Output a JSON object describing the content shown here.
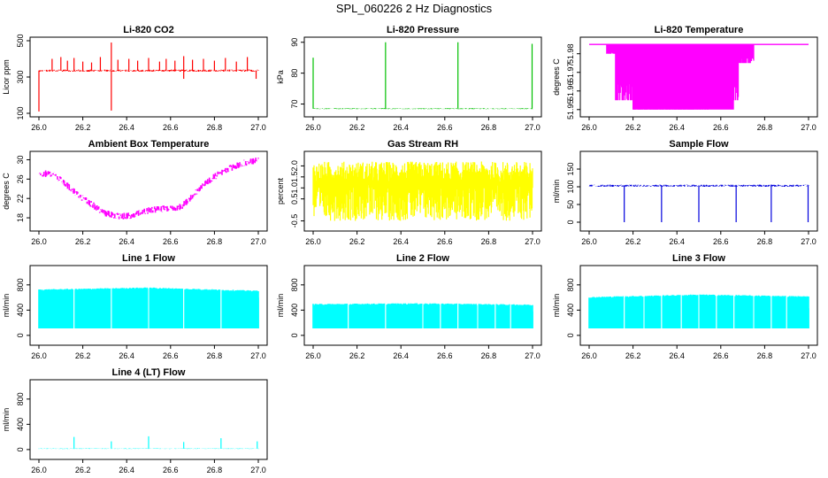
{
  "figure": {
    "title": "SPL_060226  2 Hz Diagnostics",
    "x_tick_labels": [
      "26.0",
      "26.2",
      "26.4",
      "26.6",
      "26.8",
      "27.0"
    ]
  },
  "chart_data": [
    {
      "id": "co2",
      "type": "line",
      "title": "Li-820 CO2",
      "ylabel": "Licor ppm",
      "color": "#ff0000",
      "xlim": [
        26.0,
        27.0
      ],
      "ylim": [
        100,
        500
      ],
      "yticks": [
        100,
        300,
        500
      ],
      "ytick_labels": [
        "100",
        "300",
        "500"
      ],
      "baseline": 335,
      "noise": 6,
      "spikes": [
        {
          "x": 26.0,
          "y": 110
        },
        {
          "x": 26.06,
          "y": 400
        },
        {
          "x": 26.1,
          "y": 410
        },
        {
          "x": 26.13,
          "y": 390
        },
        {
          "x": 26.16,
          "y": 405
        },
        {
          "x": 26.2,
          "y": 385
        },
        {
          "x": 26.24,
          "y": 380
        },
        {
          "x": 26.28,
          "y": 410
        },
        {
          "x": 26.33,
          "y": 490
        },
        {
          "x": 26.33,
          "y": 115
        },
        {
          "x": 26.36,
          "y": 395
        },
        {
          "x": 26.41,
          "y": 400
        },
        {
          "x": 26.45,
          "y": 390
        },
        {
          "x": 26.5,
          "y": 405
        },
        {
          "x": 26.55,
          "y": 385
        },
        {
          "x": 26.58,
          "y": 400
        },
        {
          "x": 26.62,
          "y": 390
        },
        {
          "x": 26.66,
          "y": 415
        },
        {
          "x": 26.66,
          "y": 290
        },
        {
          "x": 26.7,
          "y": 395
        },
        {
          "x": 26.75,
          "y": 400
        },
        {
          "x": 26.8,
          "y": 390
        },
        {
          "x": 26.85,
          "y": 405
        },
        {
          "x": 26.9,
          "y": 385
        },
        {
          "x": 26.95,
          "y": 410
        },
        {
          "x": 26.99,
          "y": 290
        }
      ]
    },
    {
      "id": "pressure",
      "type": "line",
      "title": "Li-820 Pressure",
      "ylabel": "kPa",
      "color": "#00c000",
      "xlim": [
        26.0,
        27.0
      ],
      "ylim": [
        67.0,
        90.5
      ],
      "yticks": [
        70,
        80,
        90
      ],
      "ytick_labels": [
        "70",
        "80",
        "90"
      ],
      "baseline": 68.5,
      "noise": 0.15,
      "spikes": [
        {
          "x": 26.0,
          "y": 85
        },
        {
          "x": 26.33,
          "y": 90
        },
        {
          "x": 26.66,
          "y": 90
        },
        {
          "x": 26.998,
          "y": 89.5
        }
      ]
    },
    {
      "id": "licor_temp",
      "type": "band",
      "title": "Li-820 Temperature",
      "ylabel": "degrees C",
      "color": "#ff00ff",
      "xlim": [
        26.0,
        27.0
      ],
      "ylim": [
        51.948,
        51.987
      ],
      "yticks": [
        51.95,
        51.96,
        51.97,
        51.98
      ],
      "ytick_labels": [
        "51.95",
        "51.96",
        "51.97",
        "51.98"
      ],
      "top_value": 51.985,
      "drop_regions": [
        {
          "x0": 26.08,
          "x1": 26.12,
          "y": 51.98
        },
        {
          "x0": 26.12,
          "x1": 26.2,
          "y": 51.955
        },
        {
          "x0": 26.2,
          "x1": 26.55,
          "y": 51.95
        },
        {
          "x0": 26.55,
          "x1": 26.68,
          "y": 51.955
        },
        {
          "x0": 26.68,
          "x1": 26.75,
          "y": 51.975
        }
      ]
    },
    {
      "id": "ambient_temp",
      "type": "line",
      "title": "Ambient Box Temperature",
      "ylabel": "degrees C",
      "color": "#ff00ff",
      "xlim": [
        26.0,
        27.0
      ],
      "ylim": [
        16.0,
        31.0
      ],
      "yticks": [
        18,
        22,
        26,
        30
      ],
      "ytick_labels": [
        "18",
        "22",
        "26",
        "30"
      ],
      "x": [
        26.0,
        26.05,
        26.1,
        26.15,
        26.2,
        26.25,
        26.3,
        26.35,
        26.4,
        26.45,
        26.5,
        26.55,
        26.6,
        26.65,
        26.7,
        26.75,
        26.8,
        26.85,
        26.9,
        26.95,
        27.0
      ],
      "values": [
        27.0,
        27.2,
        25.8,
        23.8,
        22.0,
        20.5,
        19.0,
        18.4,
        18.3,
        18.8,
        19.5,
        19.8,
        20.0,
        20.3,
        22.5,
        24.8,
        26.5,
        27.8,
        28.8,
        29.5,
        30.0
      ],
      "noise": 0.7
    },
    {
      "id": "gas_rh",
      "type": "noise_band",
      "title": "Gas Stream RH",
      "ylabel": "percent",
      "color": "#ffff00",
      "xlim": [
        26.0,
        27.0
      ],
      "ylim": [
        -0.8,
        2.5
      ],
      "yticks": [
        -0.5,
        0.5,
        1.0,
        1.5,
        2.0
      ],
      "ytick_labels": [
        "-0.5",
        "0.5",
        "1.0",
        "1.5",
        "2.0"
      ],
      "upper": 2.2,
      "lower": -0.5,
      "center": 1.2
    },
    {
      "id": "sample_flow",
      "type": "line",
      "title": "Sample Flow",
      "ylabel": "ml/min",
      "color": "#0000dd",
      "xlim": [
        26.0,
        27.0
      ],
      "ylim": [
        -15,
        190
      ],
      "yticks": [
        0,
        50,
        100,
        150
      ],
      "ytick_labels": [
        "0",
        "50",
        "100",
        "150"
      ],
      "baseline": 103,
      "noise": 3,
      "spikes": [
        {
          "x": 26.16,
          "y": 0
        },
        {
          "x": 26.33,
          "y": 0
        },
        {
          "x": 26.5,
          "y": 0
        },
        {
          "x": 26.67,
          "y": 0
        },
        {
          "x": 26.83,
          "y": 0
        },
        {
          "x": 26.998,
          "y": 0
        }
      ]
    },
    {
      "id": "line1_flow",
      "type": "flow_band",
      "title": "Line 1 Flow",
      "ylabel": "ml/min",
      "color": "#00ffff",
      "xlim": [
        26.0,
        27.0
      ],
      "ylim": [
        -100,
        1050
      ],
      "yticks": [
        0,
        400,
        800
      ],
      "ytick_labels": [
        "0",
        "400",
        "800"
      ],
      "low": 110,
      "high_start": 720,
      "high_mid": 750,
      "high_end": 700,
      "gaps": [
        26.16,
        26.33,
        26.5,
        26.66,
        26.83
      ],
      "end_value": 600
    },
    {
      "id": "line2_flow",
      "type": "flow_band",
      "title": "Line 2 Flow",
      "ylabel": "ml/min",
      "color": "#00ffff",
      "xlim": [
        26.0,
        27.0
      ],
      "ylim": [
        -100,
        1050
      ],
      "yticks": [
        0,
        400,
        800
      ],
      "ytick_labels": [
        "0",
        "400",
        "800"
      ],
      "low": 110,
      "high_start": 490,
      "high_mid": 500,
      "high_end": 480,
      "gaps": [
        26.16,
        26.33,
        26.5,
        26.58,
        26.66,
        26.75,
        26.83,
        26.9
      ],
      "end_value": 380
    },
    {
      "id": "line3_flow",
      "type": "flow_band",
      "title": "Line 3 Flow",
      "ylabel": "ml/min",
      "color": "#00ffff",
      "xlim": [
        26.0,
        27.0
      ],
      "ylim": [
        -100,
        1050
      ],
      "yticks": [
        0,
        400,
        800
      ],
      "ytick_labels": [
        "0",
        "400",
        "800"
      ],
      "low": 110,
      "high_start": 600,
      "high_mid": 640,
      "high_end": 610,
      "gaps": [
        26.16,
        26.25,
        26.33,
        26.42,
        26.5,
        26.58,
        26.66,
        26.75,
        26.83,
        26.9
      ],
      "end_value": 430
    },
    {
      "id": "line4_flow",
      "type": "line",
      "title": "Line 4 (LT) Flow",
      "ylabel": "ml/min",
      "color": "#00ffff",
      "xlim": [
        26.0,
        27.0
      ],
      "ylim": [
        -100,
        1050
      ],
      "yticks": [
        0,
        400,
        800
      ],
      "ytick_labels": [
        "0",
        "400",
        "800"
      ],
      "baseline": 15,
      "noise": 5,
      "spikes": [
        {
          "x": 26.16,
          "y": 200
        },
        {
          "x": 26.33,
          "y": 130
        },
        {
          "x": 26.5,
          "y": 210
        },
        {
          "x": 26.66,
          "y": 120
        },
        {
          "x": 26.83,
          "y": 180
        },
        {
          "x": 26.995,
          "y": 130
        }
      ]
    }
  ]
}
